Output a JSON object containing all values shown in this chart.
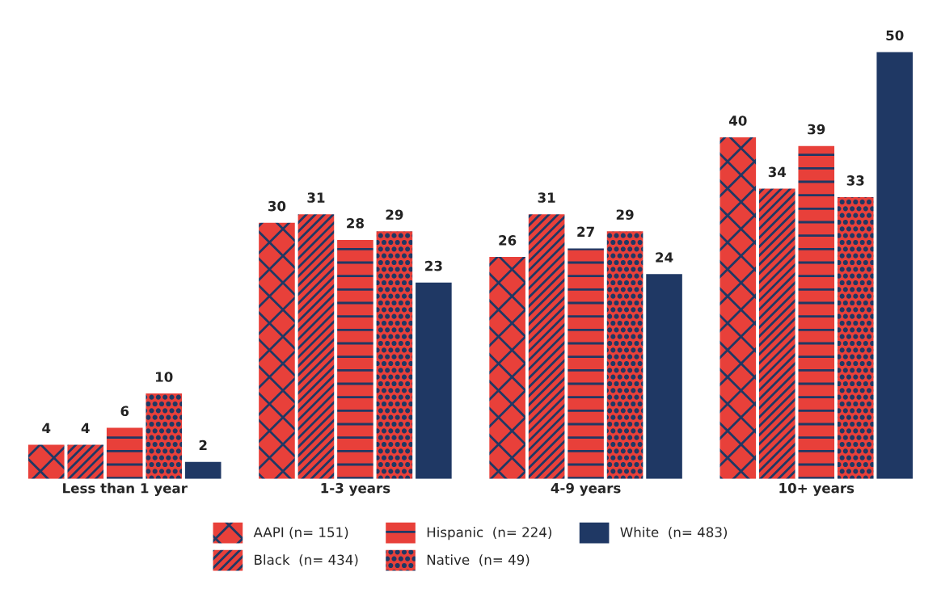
{
  "chart_data": {
    "type": "bar",
    "categories": [
      "Less than 1 year",
      "1-3 years",
      "4-9 years",
      "10+ years"
    ],
    "series": [
      {
        "name": "AAPI (n= 151)",
        "color": "#e8403a",
        "values": [
          4,
          30,
          26,
          40
        ]
      },
      {
        "name": "Black  (n= 434)",
        "color": "#e8403a",
        "values": [
          4,
          31,
          31,
          34
        ]
      },
      {
        "name": "Hispanic  (n= 224)",
        "color": "#e8403a",
        "values": [
          6,
          28,
          27,
          39
        ]
      },
      {
        "name": "Native  (n= 49)",
        "color": "#e8403a",
        "values": [
          10,
          29,
          29,
          33
        ]
      },
      {
        "name": "White  (n= 483)",
        "color": "#1f3864",
        "values": [
          2,
          23,
          24,
          50
        ]
      }
    ],
    "data_labels": true,
    "legend": "bottom",
    "grid": false
  }
}
